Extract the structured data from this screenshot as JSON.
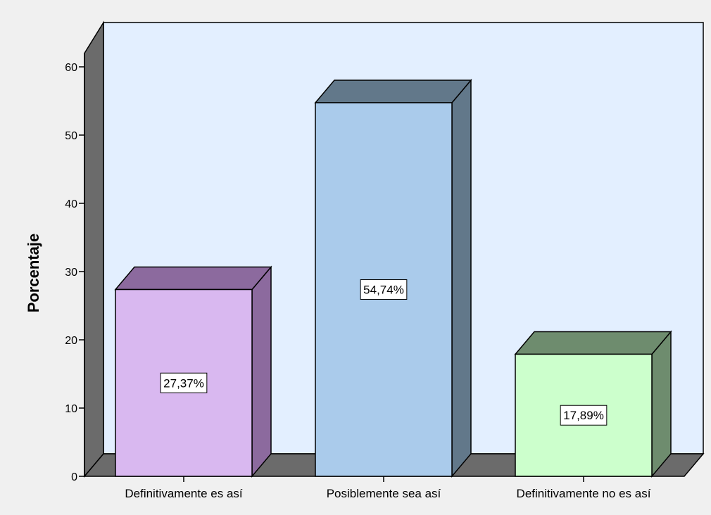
{
  "chart_data": {
    "type": "bar",
    "style": "3d",
    "categories": [
      "Definitivamente es así",
      "Posiblemente sea así",
      "Definitivamente no es así"
    ],
    "values": [
      27.37,
      54.74,
      17.89
    ],
    "data_labels": [
      "27,37%",
      "54,74%",
      "17,89%"
    ],
    "title": "",
    "xlabel": "",
    "ylabel": "Porcentaje",
    "ylim": [
      0,
      60
    ],
    "yticks": [
      0,
      10,
      20,
      30,
      40,
      50,
      60
    ],
    "yticklabels": [
      "0",
      "10",
      "20",
      "30",
      "40",
      "50",
      "60"
    ],
    "grid": false,
    "legend": "none",
    "colors": {
      "plot_back": "#e3efff",
      "floor": "#6b6b6b",
      "left_wall": "#6b6b6b",
      "bars": [
        {
          "front": "#d9b8f0",
          "top": "#8c6a9e",
          "side": "#8c6a9e"
        },
        {
          "front": "#aacbeb",
          "top": "#62788a",
          "side": "#62788a"
        },
        {
          "front": "#ccffcc",
          "top": "#6e8c6e",
          "side": "#6e8c6e"
        }
      ]
    }
  }
}
